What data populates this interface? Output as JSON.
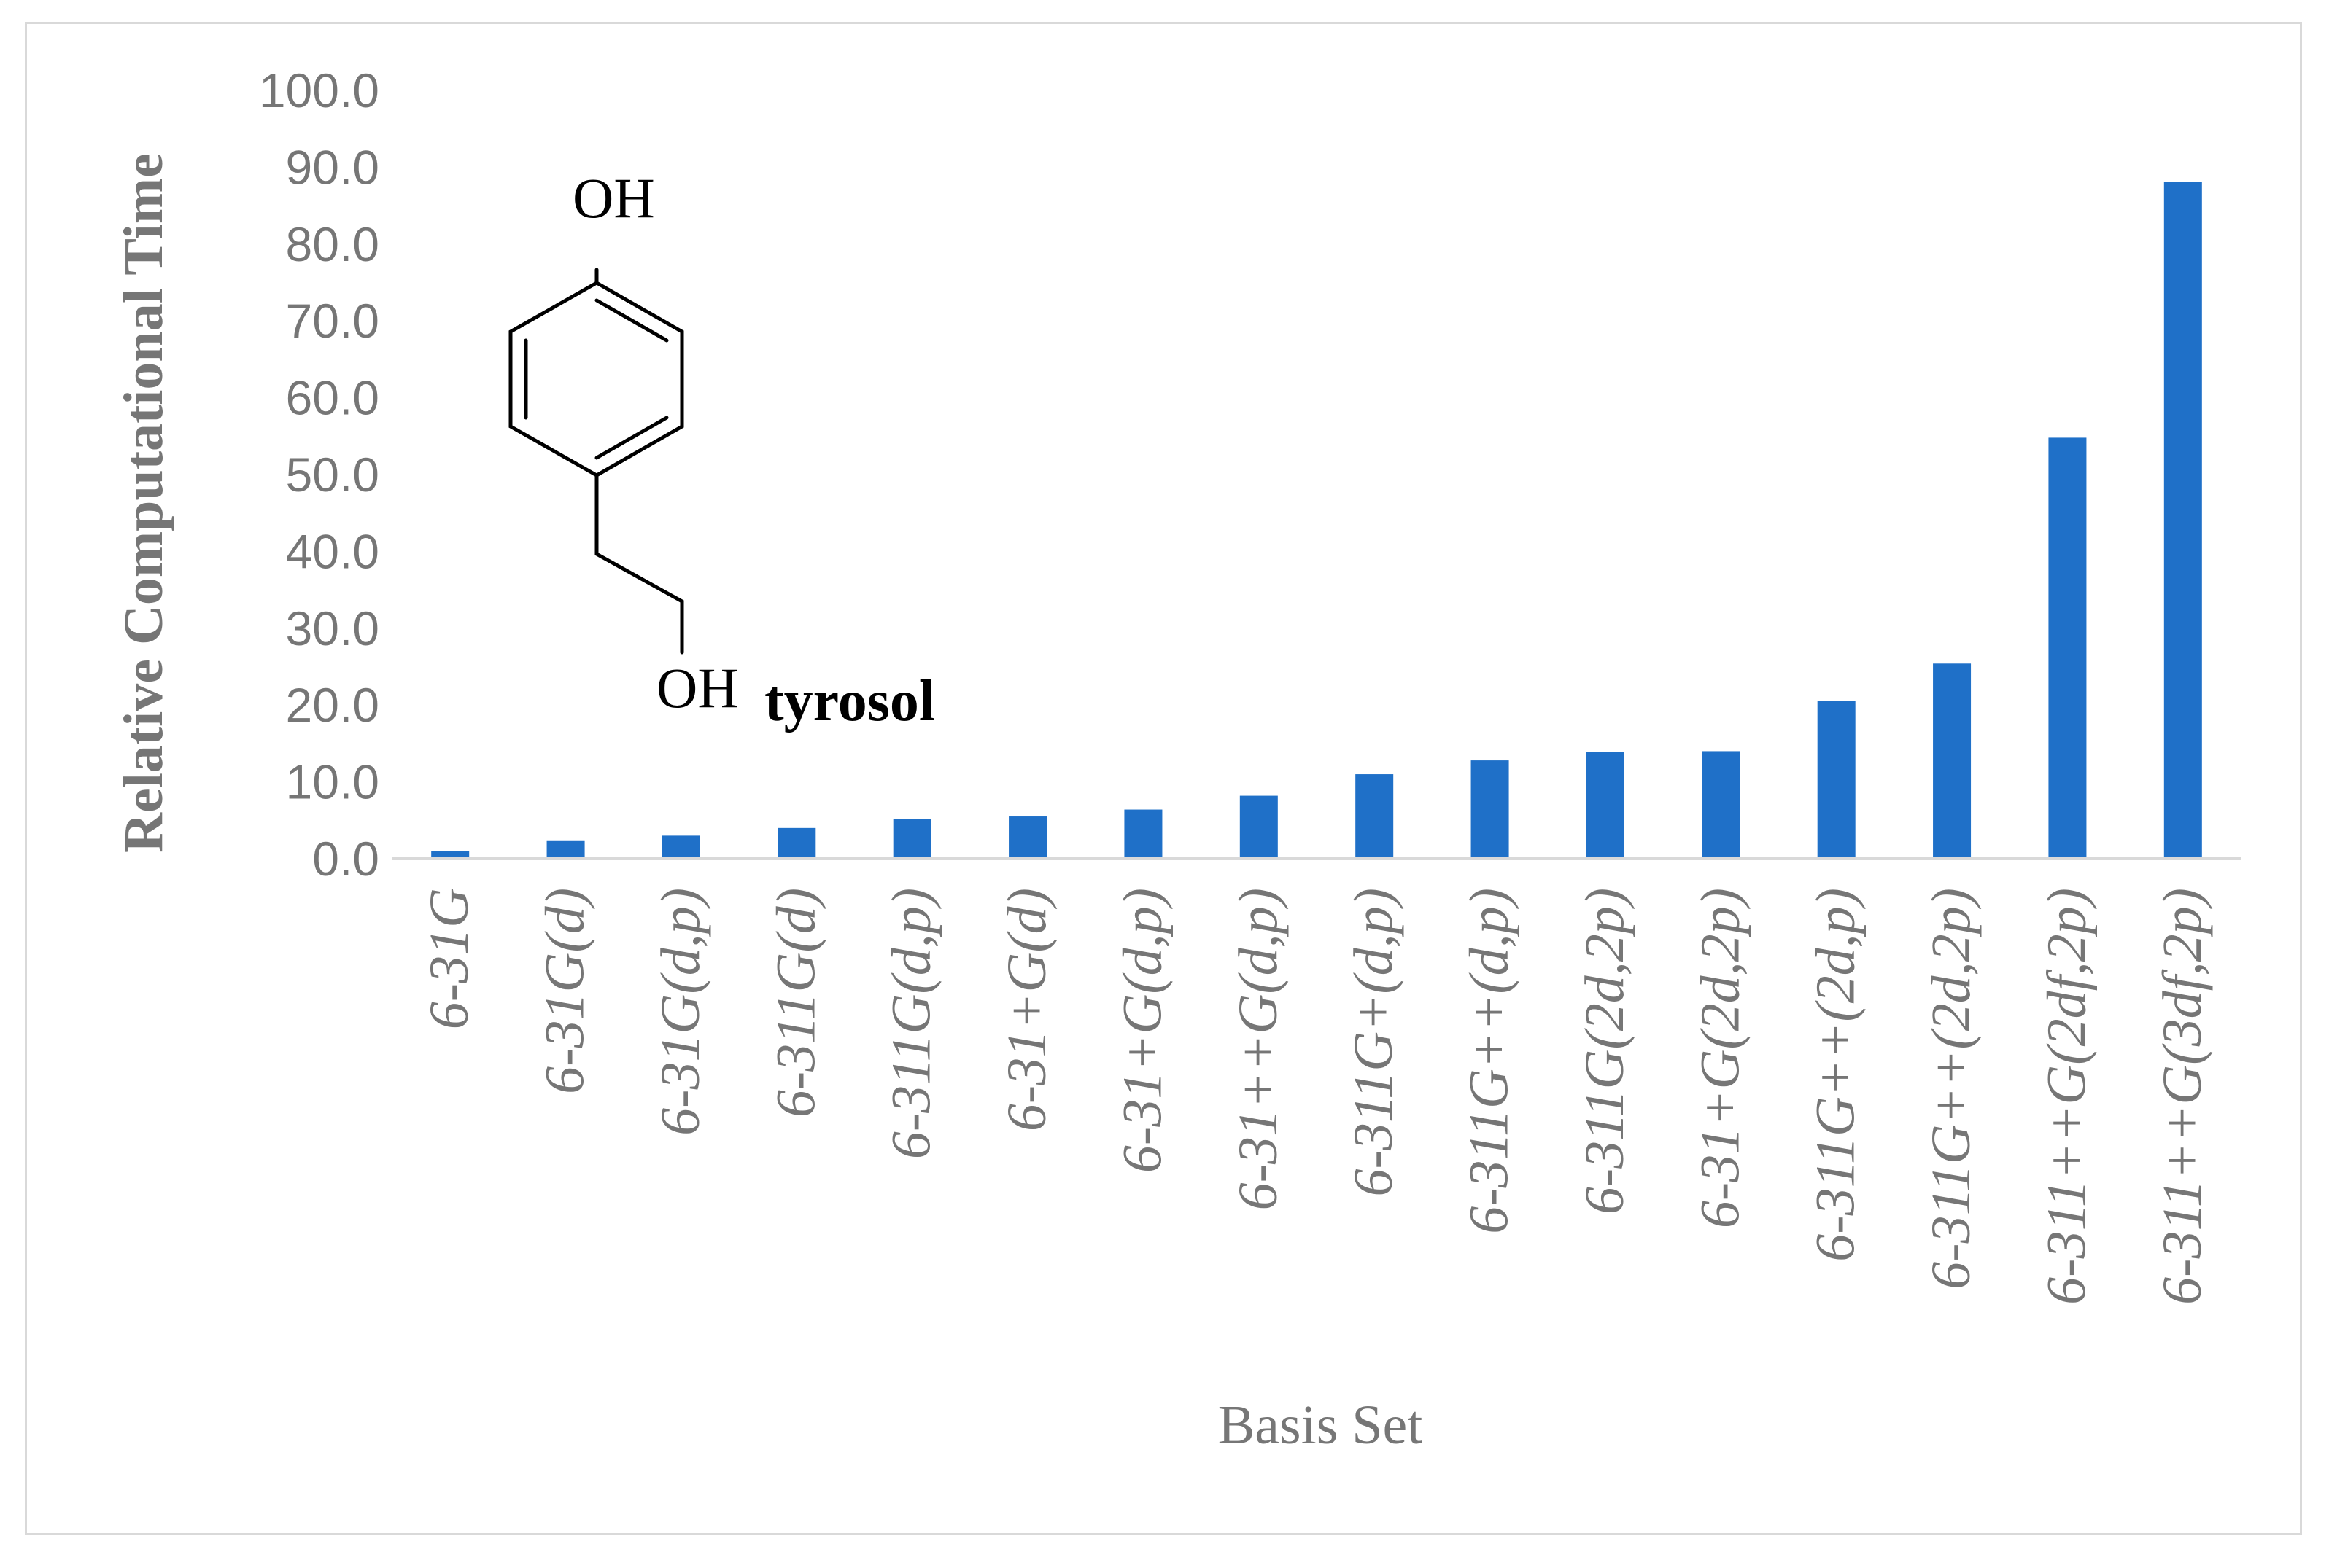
{
  "chart_data": {
    "type": "bar",
    "categories": [
      "6-31G",
      "6-31G(d)",
      "6-31G(d,p)",
      "6-311G(d)",
      "6-311G(d,p)",
      "6-31+G(d)",
      "6-31+G(d,p)",
      "6-31++G(d,p)",
      "6-311G+(d,p)",
      "6-311G++(d,p)",
      "6-311G(2d,2p)",
      "6-31+G(2d,2p)",
      "6-311G++(2d,p)",
      "6-311G++(2d,2p)",
      "6-311++G(2df,2p)",
      "6-311++G(3df,2p)"
    ],
    "values": [
      1.0,
      2.3,
      3.0,
      4.0,
      5.2,
      5.5,
      6.4,
      8.2,
      11.0,
      12.8,
      13.9,
      14.0,
      20.5,
      25.4,
      54.8,
      88.1
    ],
    "title": "",
    "xlabel": "Basis Set",
    "ylabel": "Relative Computational Time",
    "ylim": [
      0,
      100
    ],
    "ytick_labels": [
      "0.0",
      "10.0",
      "20.0",
      "30.0",
      "40.0",
      "50.0",
      "60.0",
      "70.0",
      "80.0",
      "90.0",
      "100.0"
    ],
    "grid": false,
    "legend": "none",
    "bar_color": "#1f70c8",
    "annotations": {
      "molecule_name": "tyrosol",
      "top_group": "OH",
      "bottom_group": "OH"
    }
  }
}
